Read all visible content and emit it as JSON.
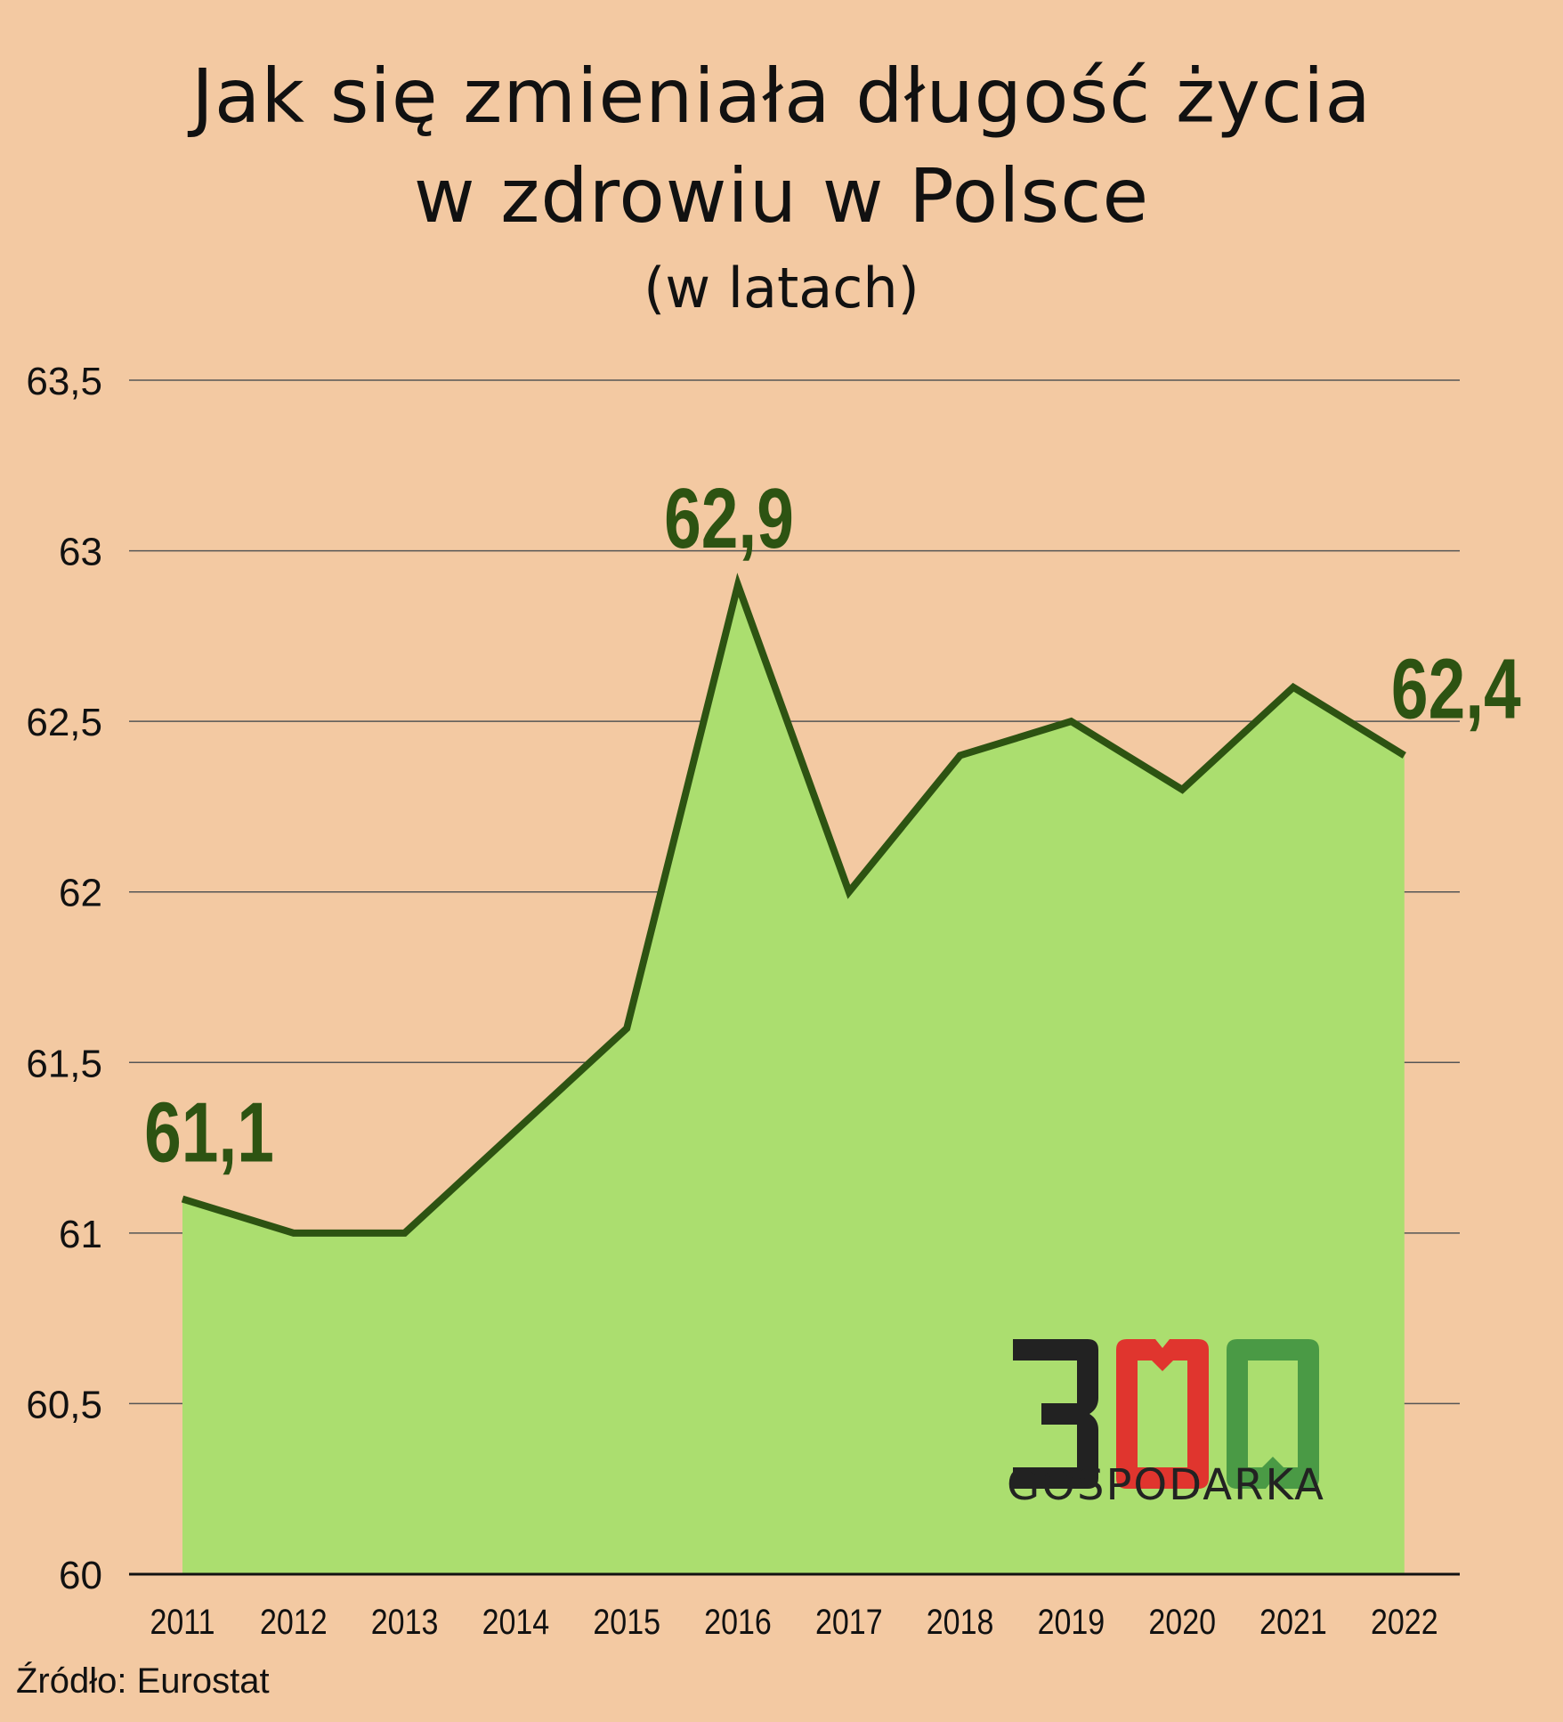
{
  "title_line1": "Jak się zmieniała długość życia",
  "title_line2": "w zdrowiu w Polsce",
  "subtitle": "(w latach)",
  "source": "Źródło: Eurostat",
  "logo": {
    "number": "300",
    "text": "GOSPODARKA"
  },
  "colors": {
    "background": "#f3c9a2",
    "area_fill": "#abde6f",
    "line": "#2d5312",
    "labels": "#2d5312",
    "logo_dark": "#222222",
    "logo_red": "#e0352e",
    "logo_green": "#4a9a45"
  },
  "chart_data": {
    "type": "area",
    "title": "Jak się zmieniała długość życia w zdrowiu w Polsce",
    "subtitle": "(w latach)",
    "categories": [
      "2011",
      "2012",
      "2013",
      "2014",
      "2015",
      "2016",
      "2017",
      "2018",
      "2019",
      "2020",
      "2021",
      "2022"
    ],
    "values": [
      61.1,
      61.0,
      61.0,
      61.3,
      61.6,
      62.9,
      62.0,
      62.4,
      62.5,
      62.3,
      62.6,
      62.4
    ],
    "ylim": [
      60,
      63.5
    ],
    "yticks": [
      60,
      60.5,
      61,
      61.5,
      62,
      62.5,
      63,
      63.5
    ],
    "ytick_labels": [
      "60",
      "60,5",
      "61",
      "61,5",
      "62",
      "62,5",
      "63",
      "63,5"
    ],
    "annotations": [
      {
        "category": "2011",
        "label": "61,1"
      },
      {
        "category": "2016",
        "label": "62,9"
      },
      {
        "category": "2022",
        "label": "62,4"
      }
    ],
    "grid": true,
    "xlabel": "",
    "ylabel": ""
  }
}
